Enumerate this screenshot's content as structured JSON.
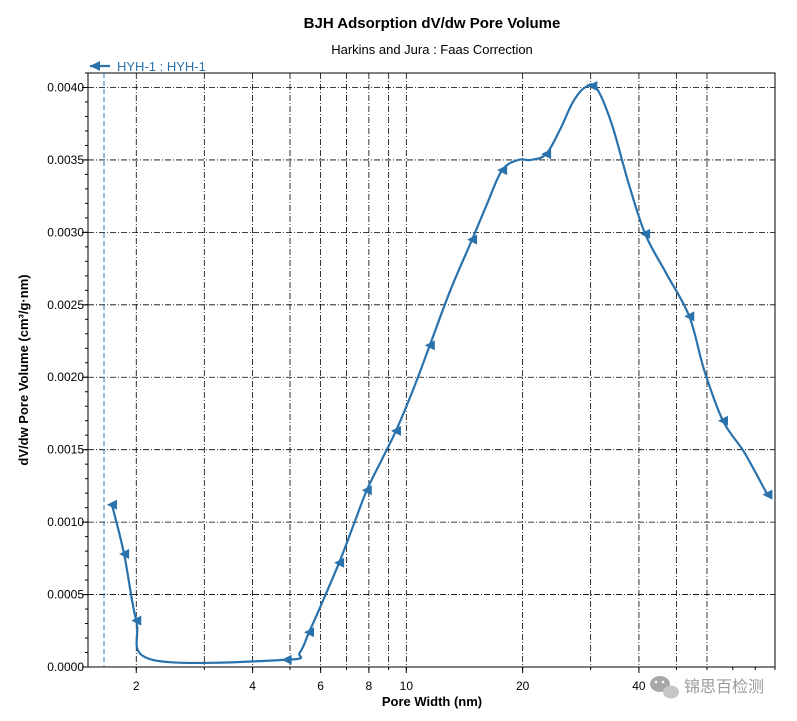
{
  "chart_data": {
    "type": "line",
    "title": "BJH Adsorption dV/dw Pore Volume",
    "subtitle": "Harkins and Jura : Faas Correction",
    "xlabel": "Pore Width (nm)",
    "ylabel": "dV/dw Pore Volume (cm³/g·nm)",
    "xscale": "log",
    "xlim": [
      1.5,
      90
    ],
    "ylim": [
      0,
      0.0041
    ],
    "x_tick_labels": [
      "2",
      "4",
      "6",
      "8",
      "10",
      "20",
      "40"
    ],
    "x_ticks": [
      2,
      4,
      6,
      8,
      10,
      20,
      40
    ],
    "x_gridlines": [
      2,
      3,
      4,
      5,
      6,
      7,
      8,
      9,
      10,
      20,
      30,
      40,
      50,
      60
    ],
    "y_ticks": [
      0,
      0.0005,
      0.001,
      0.0015,
      0.002,
      0.0025,
      0.003,
      0.0035,
      0.004
    ],
    "y_tick_labels": [
      "0.0000",
      "0.0005",
      "0.0010",
      "0.0015",
      "0.0020",
      "0.0025",
      "0.0030",
      "0.0035",
      "0.0040"
    ],
    "grid": true,
    "legend_position": "top-left",
    "series": [
      {
        "name": "HYH-1 : HYH-1",
        "color": "#2a72ac",
        "marker": "triangle-left",
        "points": [
          [
            1.73,
            0.00112
          ],
          [
            1.86,
            0.00078
          ],
          [
            2.0,
            0.00032
          ],
          [
            4.9,
            5e-05
          ],
          [
            5.6,
            0.00024
          ],
          [
            6.7,
            0.00072
          ],
          [
            7.9,
            0.00122
          ],
          [
            9.4,
            0.00163
          ],
          [
            11.5,
            0.00222
          ],
          [
            14.8,
            0.00295
          ],
          [
            17.7,
            0.00343
          ],
          [
            23.0,
            0.00354
          ],
          [
            30.3,
            0.00401
          ],
          [
            41.5,
            0.00299
          ],
          [
            54.0,
            0.00242
          ],
          [
            66.0,
            0.0017
          ],
          [
            86.0,
            0.00119
          ]
        ],
        "curve": [
          [
            1.73,
            0.00112
          ],
          [
            1.86,
            0.00078
          ],
          [
            2.0,
            0.00032
          ],
          [
            2.2,
            5e-05
          ],
          [
            4.9,
            5e-05
          ],
          [
            5.3,
            0.0001
          ],
          [
            5.6,
            0.00024
          ],
          [
            6.0,
            0.00042
          ],
          [
            6.7,
            0.00072
          ],
          [
            7.3,
            0.00098
          ],
          [
            7.9,
            0.00122
          ],
          [
            8.6,
            0.00142
          ],
          [
            9.4,
            0.00163
          ],
          [
            10.4,
            0.00191
          ],
          [
            11.5,
            0.00222
          ],
          [
            13.0,
            0.0026
          ],
          [
            14.8,
            0.00295
          ],
          [
            16.2,
            0.0032
          ],
          [
            17.7,
            0.00343
          ],
          [
            19.5,
            0.0035
          ],
          [
            21.0,
            0.0035
          ],
          [
            23.0,
            0.00354
          ],
          [
            25.0,
            0.00371
          ],
          [
            27.0,
            0.0039
          ],
          [
            29.0,
            0.004
          ],
          [
            31.0,
            0.004
          ],
          [
            34.0,
            0.00375
          ],
          [
            37.5,
            0.00335
          ],
          [
            41.5,
            0.00299
          ],
          [
            47.0,
            0.00272
          ],
          [
            54.0,
            0.00242
          ],
          [
            59.0,
            0.00205
          ],
          [
            66.0,
            0.0017
          ],
          [
            75.0,
            0.00148
          ],
          [
            86.0,
            0.00119
          ]
        ]
      }
    ],
    "annotations": [
      {
        "type": "vertical-dashed-line",
        "x": 1.65
      }
    ]
  },
  "watermark": {
    "text": "锦思百检测",
    "icon": "wechat-icon"
  }
}
